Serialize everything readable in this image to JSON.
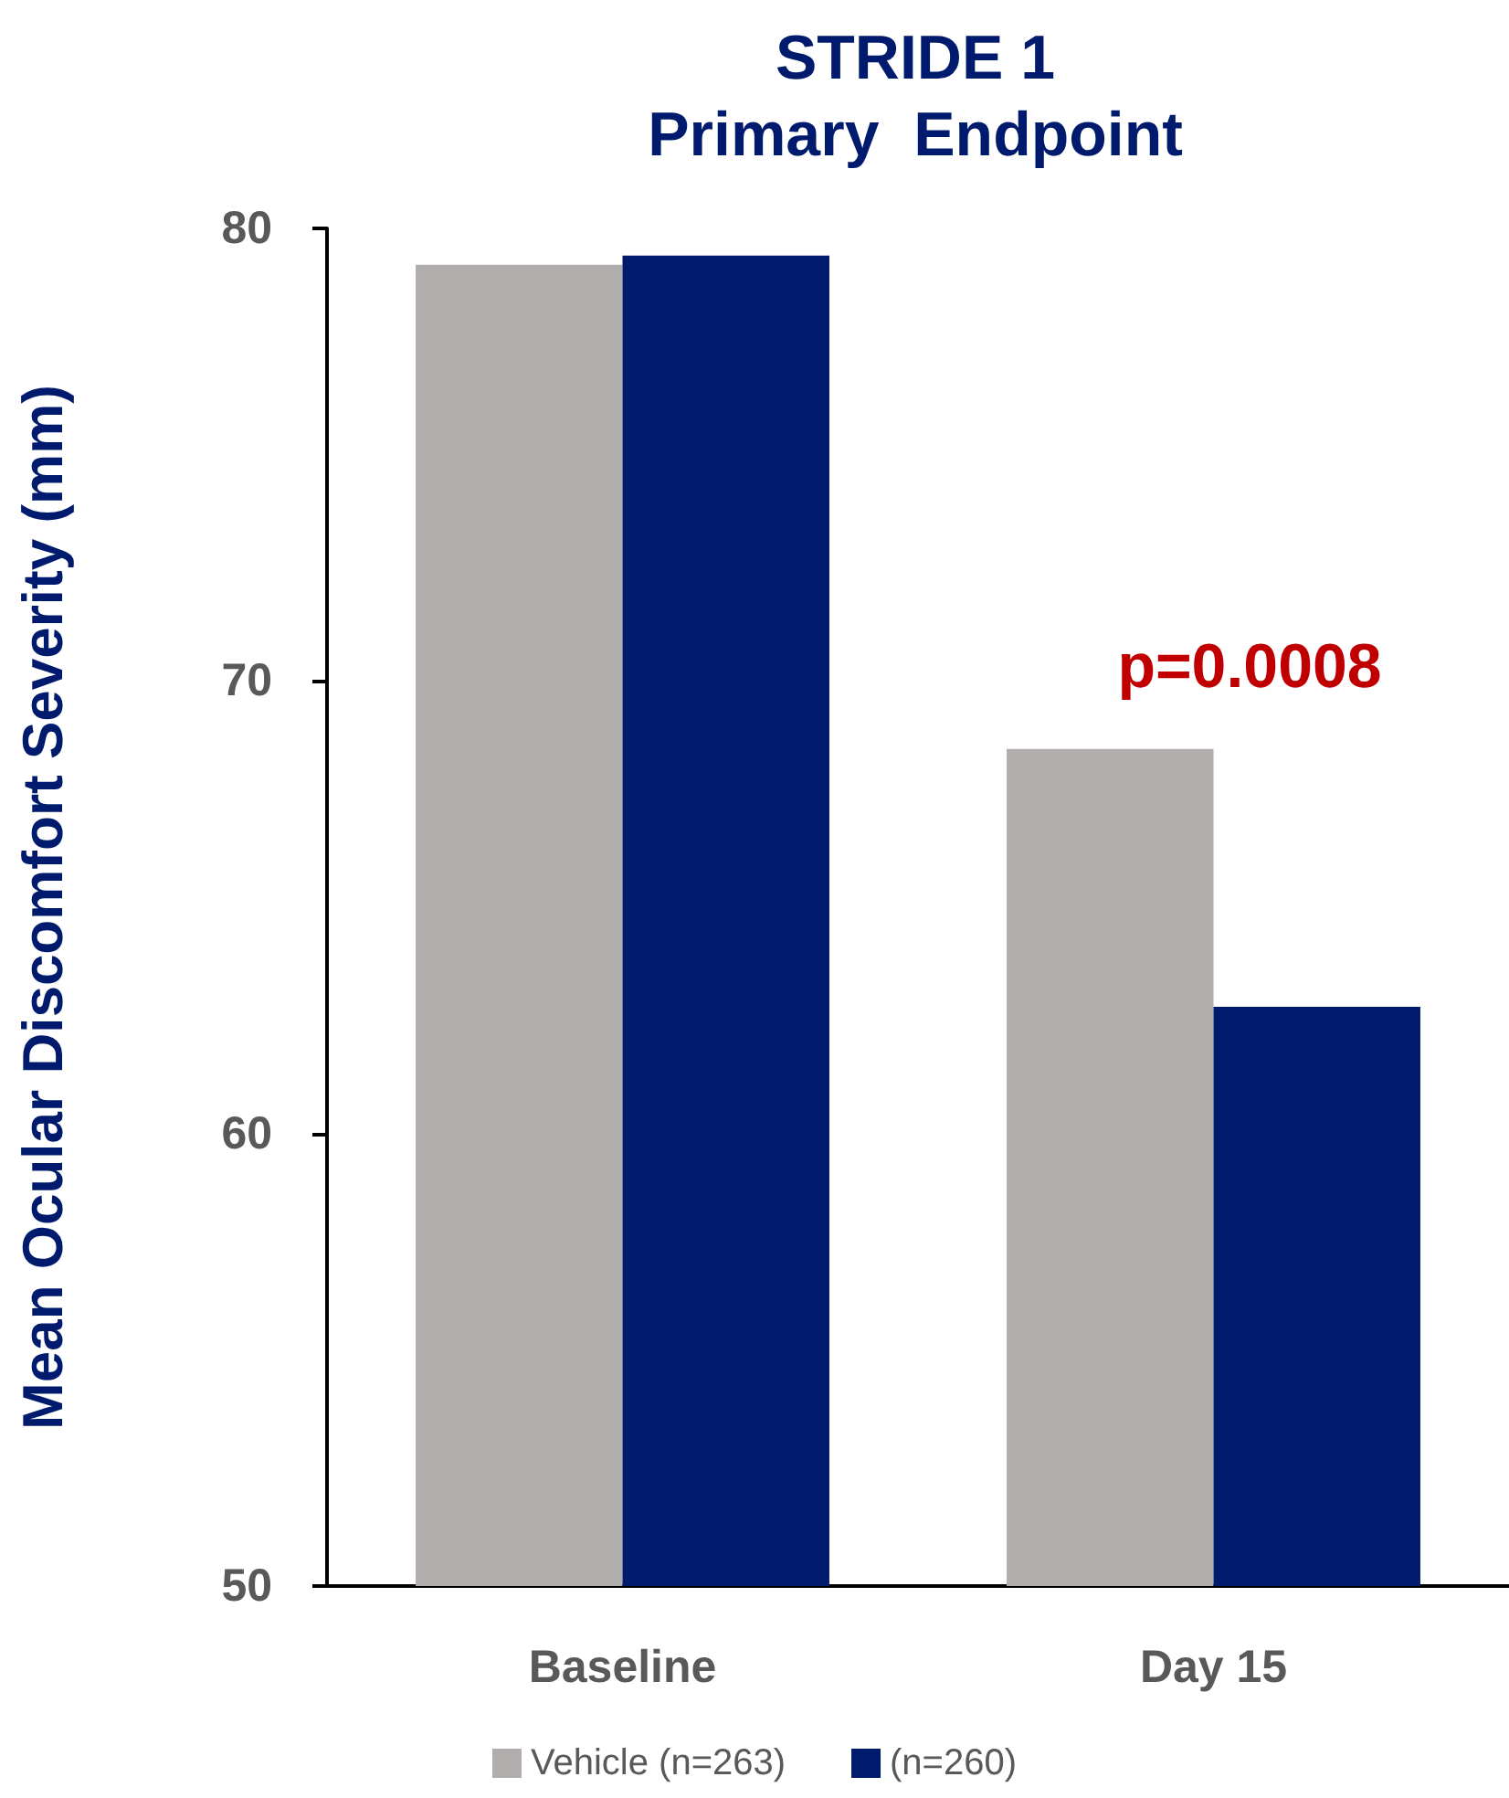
{
  "chart_data": {
    "type": "bar",
    "title": "STRIDE 1\nPrimary  Endpoint",
    "ylabel": "Mean Ocular Discomfort Severity (mm)",
    "categories": [
      "Baseline",
      "Day 15"
    ],
    "series": [
      {
        "name": "Vehicle (n=263)",
        "color": "#b0adac",
        "values": [
          79.2,
          68.5
        ]
      },
      {
        "name": "(n=260)",
        "color": "#001b6d",
        "values": [
          79.4,
          62.8
        ]
      }
    ],
    "ylim": [
      50,
      80
    ],
    "yticks": [
      50,
      60,
      70,
      80
    ],
    "grid": false,
    "legend": "bottom",
    "annotations": [
      "p=0.0008"
    ]
  }
}
